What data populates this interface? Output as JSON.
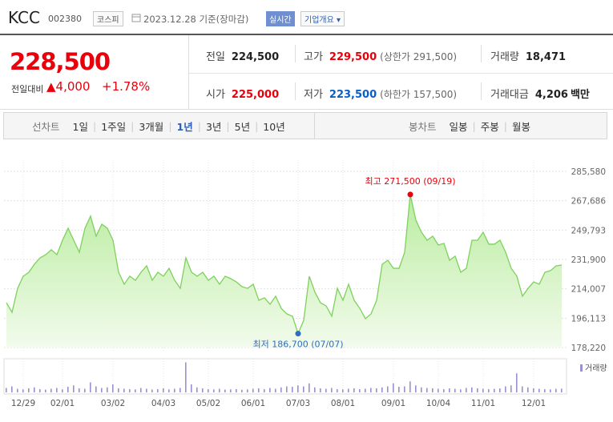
{
  "header": {
    "name": "KCC",
    "code": "002380",
    "market": "코스피",
    "date": "2023.12.28 기준(장마감)",
    "realtime": "실시간",
    "company_menu": "기업개요"
  },
  "quote": {
    "price": "228,500",
    "change_label": "전일대비",
    "change": "▲4,000",
    "change_pct": "+1.78%",
    "stats": [
      {
        "label": "전일",
        "value": "224,500",
        "color": "#222"
      },
      {
        "label": "고가",
        "value": "229,500",
        "note": "(상한가 291,500)",
        "color": "#e8000b"
      },
      {
        "label": "거래량",
        "value": "18,471",
        "color": "#222"
      },
      {
        "label": "시가",
        "value": "225,000",
        "color": "#e8000b"
      },
      {
        "label": "저가",
        "value": "223,500",
        "note": "(하한가 157,500)",
        "color": "#0a5fc4"
      },
      {
        "label": "거래대금",
        "value": "4,206",
        "unit": "백만",
        "color": "#222"
      }
    ]
  },
  "tabs": {
    "line_label": "선차트",
    "line_periods": [
      "1일",
      "1주일",
      "3개월",
      "1년",
      "3년",
      "5년",
      "10년"
    ],
    "selected": 3,
    "candle_label": "봉차트",
    "candle_periods": [
      "일봉",
      "주봉",
      "월봉"
    ]
  },
  "chart_data": {
    "type": "area",
    "series": [
      {
        "color": "#7ed15c",
        "values": [
          205500,
          199700,
          214300,
          221700,
          224100,
          229000,
          232900,
          234800,
          237800,
          234800,
          243600,
          250900,
          243600,
          236300,
          250900,
          258300,
          246100,
          253400,
          250900,
          243600,
          224100,
          216800,
          221700,
          219200,
          224100,
          228000,
          219200,
          224100,
          221700,
          226500,
          219200,
          214300,
          232900,
          224100,
          221700,
          224100,
          219200,
          221700,
          216800,
          221700,
          220200,
          218200,
          215300,
          214300,
          216800,
          207000,
          208500,
          204600,
          209500,
          202100,
          198700,
          197300,
          186700,
          194800,
          221700,
          211900,
          205500,
          203600,
          197300,
          214300,
          207000,
          216800,
          207000,
          202100,
          195800,
          198700,
          207000,
          229000,
          231400,
          226500,
          226500,
          236300,
          271500,
          255800,
          248500,
          243600,
          246100,
          240700,
          241700,
          231400,
          233900,
          224100,
          226500,
          243600,
          243600,
          248500,
          241200,
          241200,
          243600,
          236300,
          226500,
          221700,
          209500,
          214300,
          218200,
          216800,
          224100,
          225100,
          228000,
          228500
        ]
      },
      {
        "name": "거래량",
        "color": "#9a8fd0",
        "axis": "y2",
        "values": [
          22000,
          30000,
          18000,
          15000,
          20000,
          25000,
          16000,
          14000,
          18000,
          22000,
          15000,
          28000,
          35000,
          20000,
          18000,
          50000,
          30000,
          22000,
          25000,
          40000,
          20000,
          18000,
          16000,
          15000,
          22000,
          18000,
          14000,
          16000,
          20000,
          15000,
          18000,
          22000,
          150000,
          40000,
          25000,
          20000,
          16000,
          15000,
          18000,
          14000,
          15000,
          16000,
          13000,
          15000,
          18000,
          20000,
          16000,
          22000,
          18000,
          25000,
          30000,
          28000,
          35000,
          30000,
          45000,
          25000,
          20000,
          18000,
          22000,
          16000,
          15000,
          18000,
          20000,
          16000,
          18000,
          22000,
          20000,
          25000,
          30000,
          45000,
          28000,
          30000,
          55000,
          35000,
          25000,
          22000,
          20000,
          18000,
          16000,
          20000,
          18000,
          15000,
          22000,
          25000,
          20000,
          18000,
          16000,
          18000,
          20000,
          30000,
          35000,
          95000,
          30000,
          25000,
          20000,
          18000,
          16000,
          15000,
          18000,
          18471
        ]
      }
    ],
    "xlim": [
      0,
      99
    ],
    "xticks": [
      {
        "value": 3,
        "label": "12/29"
      },
      {
        "value": 10,
        "label": "02/01"
      },
      {
        "value": 19,
        "label": "03/02"
      },
      {
        "value": 28,
        "label": "04/03"
      },
      {
        "value": 36,
        "label": "05/02"
      },
      {
        "value": 44,
        "label": "06/01"
      },
      {
        "value": 52,
        "label": "07/03"
      },
      {
        "value": 60,
        "label": "08/01"
      },
      {
        "value": 69,
        "label": "09/01"
      },
      {
        "value": 77,
        "label": "10/04"
      },
      {
        "value": 85,
        "label": "11/01"
      },
      {
        "value": 94,
        "label": "12/01"
      }
    ],
    "ylim": [
      178220,
      285580
    ],
    "yticks": [
      {
        "value": 178220,
        "label": "178,220"
      },
      {
        "value": 196113,
        "label": "196,113"
      },
      {
        "value": 214007,
        "label": "214,007"
      },
      {
        "value": 231900,
        "label": "231,900"
      },
      {
        "value": 249793,
        "label": "249,793"
      },
      {
        "value": 267686,
        "label": "267,686"
      },
      {
        "value": 285580,
        "label": "285,580"
      }
    ],
    "y2lim": [
      0,
      160000
    ],
    "grid": true,
    "annotations": {
      "high": {
        "text": "최고 271,500 (09/19)",
        "color": "#e8000b"
      },
      "low": {
        "text": "최저 186,700 (07/07)",
        "color": "#2f6ec0"
      }
    }
  }
}
